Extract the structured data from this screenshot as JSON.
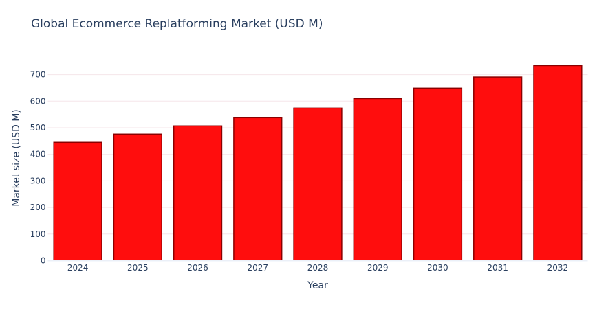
{
  "chart_data": {
    "type": "bar",
    "title": "Global Ecommerce Replatforming Market (USD M)",
    "xlabel": "Year",
    "ylabel": "Market size (USD M)",
    "categories": [
      "2024",
      "2025",
      "2026",
      "2027",
      "2028",
      "2029",
      "2030",
      "2031",
      "2032"
    ],
    "values": [
      445,
      476,
      507,
      538,
      574,
      610,
      649,
      691,
      734
    ],
    "ylim": [
      0,
      770
    ],
    "yticks": [
      "0",
      "100",
      "200",
      "300",
      "400",
      "500",
      "600",
      "700"
    ],
    "grid": true,
    "colors": {
      "bar_fill": "#ff0d0d",
      "bar_border": "#8b0000",
      "grid": "#f5e6ea",
      "text": "#2a3f5f"
    }
  }
}
